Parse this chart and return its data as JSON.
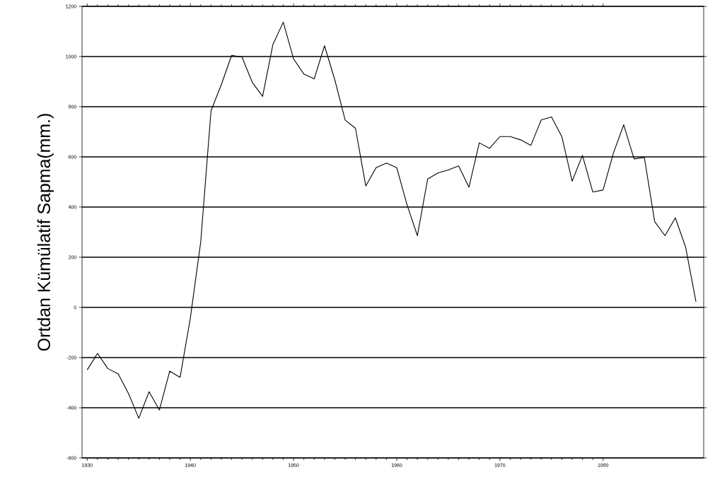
{
  "chart_data": {
    "type": "line",
    "ylabel": "Ortdan Kümülatif Sapma(mm.)",
    "x": [
      1930,
      1931,
      1932,
      1933,
      1934,
      1935,
      1936,
      1937,
      1938,
      1939,
      1940,
      1941,
      1942,
      1943,
      1944,
      1945,
      1946,
      1947,
      1948,
      1949,
      1950,
      1951,
      1952,
      1953,
      1954,
      1955,
      1956,
      1957,
      1958,
      1959,
      1960,
      1961,
      1962,
      1963,
      1964,
      1965,
      1966,
      1967,
      1968,
      1969,
      1970,
      1971,
      1972,
      1973,
      1974,
      1975,
      1976,
      1977,
      1978,
      1979,
      1980,
      1981,
      1982,
      1983,
      1984,
      1985,
      1986,
      1987,
      1988,
      1989
    ],
    "series": [
      {
        "color": "#000000",
        "values": [
          -249,
          -183,
          -244,
          -265,
          -343,
          -442,
          -336,
          -409,
          -254,
          -279,
          -42,
          260,
          784,
          888,
          1005,
          998,
          897,
          841,
          1048,
          1137,
          991,
          930,
          911,
          1043,
          907,
          747,
          714,
          484,
          557,
          575,
          557,
          409,
          286,
          512,
          536,
          548,
          564,
          479,
          656,
          634,
          681,
          681,
          668,
          646,
          747,
          759,
          681,
          503,
          606,
          460,
          468,
          615,
          728,
          592,
          597,
          342,
          286,
          357,
          240,
          23
        ]
      }
    ],
    "xlim": [
      1929.5,
      1989.75
    ],
    "ylim": [
      -600,
      1200
    ],
    "xticks": [
      1930,
      1940,
      1950,
      1960,
      1970,
      1980
    ],
    "yticks": [
      -600,
      -400,
      -200,
      0,
      200,
      400,
      600,
      800,
      1000,
      1200
    ],
    "grid": "y",
    "marker": "none",
    "line_style": "solid"
  }
}
